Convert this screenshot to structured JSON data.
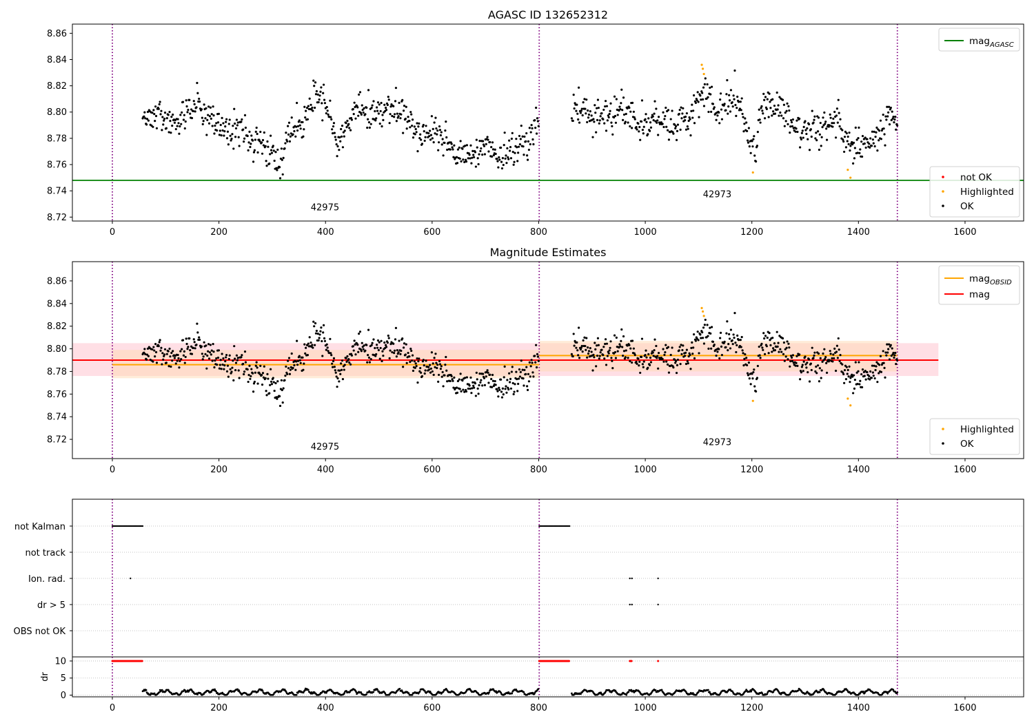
{
  "chart_data": [
    {
      "type": "scatter",
      "title": "AGASC ID 132652312",
      "xlim": [
        -75,
        1710
      ],
      "ylim": [
        8.717,
        8.867
      ],
      "x_ticks": [
        "0",
        "200",
        "400",
        "600",
        "800",
        "1000",
        "1200",
        "1400",
        "1600"
      ],
      "y_ticks": [
        "8.72",
        "8.74",
        "8.76",
        "8.78",
        "8.80",
        "8.82",
        "8.84",
        "8.86"
      ],
      "obs_boundaries": [
        0,
        801,
        1473
      ],
      "obs_labels": [
        {
          "label": "42975",
          "x": 399,
          "y": 8.725
        },
        {
          "label": "42973",
          "x": 1135,
          "y": 8.735
        }
      ],
      "hlines": [
        {
          "name": "mag",
          "sub": "AGASC",
          "y": 8.748,
          "color": "#008000"
        }
      ],
      "legend_lines": [
        {
          "name": "mag",
          "sub": "AGASC",
          "color": "#008000"
        }
      ],
      "legend_points": [
        {
          "name": "not OK",
          "color": "#ff0000"
        },
        {
          "name": "Highlighted",
          "color": "#ffa500"
        },
        {
          "name": "OK",
          "color": "#000000"
        }
      ]
    },
    {
      "type": "scatter",
      "title": "Magnitude Estimates",
      "xlim": [
        -75,
        1710
      ],
      "ylim": [
        8.703,
        8.877
      ],
      "x_ticks": [
        "0",
        "200",
        "400",
        "600",
        "800",
        "1000",
        "1200",
        "1400",
        "1600"
      ],
      "y_ticks": [
        "8.72",
        "8.74",
        "8.76",
        "8.78",
        "8.80",
        "8.82",
        "8.84",
        "8.86"
      ],
      "obs_boundaries": [
        0,
        801,
        1473
      ],
      "obs_labels": [
        {
          "label": "42975",
          "x": 399,
          "y": 8.711
        },
        {
          "label": "42973",
          "x": 1135,
          "y": 8.715
        }
      ],
      "bands": [
        {
          "x": [
            -75,
            1550
          ],
          "y": [
            8.776,
            8.805
          ],
          "color": "#ffc0cb"
        },
        {
          "x": [
            0,
            801
          ],
          "y": [
            8.774,
            8.799
          ],
          "color": "#ffdab3"
        },
        {
          "x": [
            801,
            1473
          ],
          "y": [
            8.78,
            8.807
          ],
          "color": "#ffdab3"
        }
      ],
      "lines": [
        {
          "name": "mag",
          "sub": "OBSID",
          "color": "#ffa500",
          "segments": [
            [
              0,
              801,
              8.786
            ],
            [
              801,
              1473,
              8.794
            ]
          ]
        },
        {
          "name": "mag",
          "sub": "",
          "color": "#ff0000",
          "segments": [
            [
              -75,
              1550,
              8.79
            ]
          ]
        }
      ],
      "legend_lines": [
        {
          "name": "mag",
          "sub": "OBSID",
          "color": "#ffa500"
        },
        {
          "name": "mag",
          "sub": "",
          "color": "#ff0000"
        }
      ],
      "legend_points": [
        {
          "name": "Highlighted",
          "color": "#ffa500"
        },
        {
          "name": "OK",
          "color": "#000000"
        }
      ]
    },
    {
      "type": "scatter",
      "xlim": [
        -75,
        1710
      ],
      "x_ticks": [
        "0",
        "200",
        "400",
        "600",
        "800",
        "1000",
        "1200",
        "1400",
        "1600"
      ],
      "obs_boundaries": [
        0,
        801,
        1473
      ],
      "flag_categories": [
        "not Kalman",
        "not track",
        "Ion. rad.",
        "dr > 5",
        "OBS not OK"
      ],
      "flag_ranges": [
        {
          "category": "not Kalman",
          "from": 0,
          "to": 57
        },
        {
          "category": "not Kalman",
          "from": 801,
          "to": 858
        }
      ],
      "flag_points": [
        {
          "category": "Ion. rad.",
          "x": [
            34,
            971,
            975,
            1024
          ]
        },
        {
          "category": "dr > 5",
          "x": [
            971,
            975,
            1024
          ]
        }
      ],
      "dr_label": "dr",
      "dr_ticks": [
        "0",
        "5",
        "10"
      ],
      "dr_ylim": [
        -0.5,
        11.2
      ],
      "dr_cap": 10,
      "dr_high": [
        {
          "from": 0,
          "to": 57
        },
        {
          "from": 801,
          "to": 858
        },
        {
          "from": 971,
          "to": 975
        },
        {
          "from": 1024,
          "to": 1024
        }
      ]
    }
  ]
}
